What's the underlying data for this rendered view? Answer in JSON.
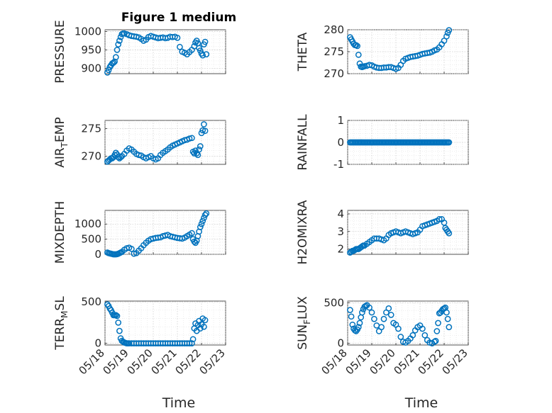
{
  "chart_data": [
    {
      "type": "scatter",
      "title": "Figure 1 medium",
      "ylabel": "PRESSURE",
      "xlabel": "",
      "xlim": [
        "05/18",
        "05/23"
      ],
      "ylim": [
        885,
        1005
      ],
      "yticks": [
        900,
        950,
        1000
      ],
      "x_tick_labels": [
        "05/18",
        "05/19",
        "05/20",
        "05/21",
        "05/22",
        "05/23"
      ],
      "x": [
        0.1,
        0.15,
        0.2,
        0.25,
        0.3,
        0.35,
        0.4,
        0.45,
        0.5,
        0.55,
        0.6,
        0.65,
        0.7,
        0.75,
        0.8,
        0.9,
        1.0,
        1.1,
        1.2,
        1.3,
        1.4,
        1.5,
        1.6,
        1.7,
        1.8,
        1.9,
        2.0,
        2.1,
        2.2,
        2.3,
        2.4,
        2.5,
        2.6,
        2.7,
        2.8,
        2.9,
        3.0,
        3.1,
        3.2,
        3.3,
        3.4,
        3.5,
        3.6,
        3.7,
        3.75,
        3.8,
        3.85,
        3.9,
        3.95,
        4.0,
        4.05,
        4.1,
        4.15,
        4.2
      ],
      "y": [
        888,
        895,
        903,
        908,
        913,
        915,
        918,
        930,
        950,
        965,
        975,
        985,
        993,
        995,
        995,
        993,
        990,
        988,
        987,
        986,
        984,
        980,
        975,
        978,
        985,
        988,
        986,
        984,
        982,
        983,
        984,
        982,
        983,
        986,
        985,
        986,
        983,
        958,
        945,
        942,
        938,
        944,
        950,
        960,
        970,
        975,
        968,
        955,
        948,
        940,
        935,
        965,
        972,
        938
      ],
      "series_name": ""
    },
    {
      "type": "scatter",
      "ylabel": "THETA",
      "xlim": [
        "05/18",
        "05/23"
      ],
      "ylim": [
        270,
        280
      ],
      "yticks": [
        270,
        275,
        280
      ],
      "x_tick_labels": [
        "05/18",
        "05/19",
        "05/20",
        "05/21",
        "05/22",
        "05/23"
      ],
      "x": [
        0.1,
        0.15,
        0.2,
        0.25,
        0.3,
        0.35,
        0.4,
        0.45,
        0.5,
        0.55,
        0.6,
        0.65,
        0.7,
        0.8,
        0.9,
        1.0,
        1.1,
        1.2,
        1.3,
        1.4,
        1.5,
        1.6,
        1.7,
        1.8,
        1.9,
        2.0,
        2.1,
        2.2,
        2.3,
        2.4,
        2.5,
        2.6,
        2.7,
        2.8,
        2.9,
        3.0,
        3.1,
        3.2,
        3.3,
        3.4,
        3.5,
        3.6,
        3.7,
        3.8,
        3.9,
        4.0,
        4.1,
        4.15,
        4.2
      ],
      "y": [
        278.3,
        277.8,
        277.3,
        276.8,
        276.5,
        276.5,
        276.3,
        274.3,
        272.3,
        271.6,
        271.5,
        271.6,
        271.7,
        271.8,
        272,
        271.9,
        271.6,
        271.4,
        271.3,
        271.3,
        271.4,
        271.4,
        271.5,
        271.5,
        271.3,
        271.1,
        271.3,
        272,
        272.9,
        273.4,
        273.6,
        273.8,
        273.9,
        274,
        274.1,
        274.3,
        274.5,
        274.6,
        274.7,
        274.8,
        275,
        275.3,
        275.5,
        276,
        276.7,
        277.5,
        278.5,
        279.3,
        279.9
      ],
      "series_name": ""
    },
    {
      "type": "scatter",
      "ylabel": "AIR_TEMP",
      "xlim": [
        "05/18",
        "05/23"
      ],
      "ylim": [
        268.5,
        276.5
      ],
      "yticks": [
        270,
        275
      ],
      "x_tick_labels": [
        "05/18",
        "05/19",
        "05/20",
        "05/21",
        "05/22",
        "05/23"
      ],
      "x": [
        0.1,
        0.15,
        0.2,
        0.25,
        0.3,
        0.35,
        0.4,
        0.45,
        0.5,
        0.55,
        0.6,
        0.65,
        0.7,
        0.8,
        0.9,
        1.0,
        1.1,
        1.2,
        1.3,
        1.4,
        1.5,
        1.6,
        1.7,
        1.8,
        1.9,
        2.0,
        2.1,
        2.2,
        2.3,
        2.4,
        2.5,
        2.6,
        2.7,
        2.8,
        2.9,
        3.0,
        3.1,
        3.2,
        3.3,
        3.4,
        3.5,
        3.6,
        3.65,
        3.7,
        3.75,
        3.8,
        3.85,
        3.9,
        3.95,
        4.0,
        4.05,
        4.1,
        4.15
      ],
      "y": [
        269,
        269.2,
        269.4,
        269.6,
        269.6,
        269.8,
        270.2,
        270.6,
        270.3,
        269.8,
        269.6,
        269.8,
        270,
        270.4,
        271,
        271.4,
        271.2,
        270.8,
        270.4,
        270.2,
        270.1,
        269.8,
        269.6,
        269.8,
        270,
        269.6,
        269.4,
        269.6,
        270.2,
        270.6,
        270.9,
        271.2,
        271.6,
        271.9,
        272.1,
        272.3,
        272.5,
        272.7,
        272.9,
        273,
        273.2,
        273.3,
        270.8,
        270.5,
        271,
        270.5,
        270.2,
        271.2,
        271.8,
        274.2,
        274.7,
        275.8,
        274.6
      ],
      "series_name": ""
    },
    {
      "type": "scatter",
      "ylabel": "RAINFALL",
      "xlim": [
        "05/18",
        "05/23"
      ],
      "ylim": [
        -1,
        1
      ],
      "yticks": [
        -1,
        0,
        1
      ],
      "x_tick_labels": [
        "05/18",
        "05/19",
        "05/20",
        "05/21",
        "05/22",
        "05/23"
      ],
      "x_range": [
        0.1,
        4.2
      ],
      "constant_value": 0,
      "series_name": ""
    },
    {
      "type": "scatter",
      "ylabel": "MIXDEPTH",
      "xlim": [
        "05/18",
        "05/23"
      ],
      "ylim": [
        0,
        1450
      ],
      "yticks": [
        0,
        500,
        1000
      ],
      "x_tick_labels": [
        "05/18",
        "05/19",
        "05/20",
        "05/21",
        "05/22",
        "05/23"
      ],
      "x": [
        0.1,
        0.15,
        0.2,
        0.25,
        0.3,
        0.35,
        0.4,
        0.45,
        0.5,
        0.55,
        0.6,
        0.65,
        0.7,
        0.8,
        0.9,
        1.0,
        1.1,
        1.2,
        1.3,
        1.4,
        1.5,
        1.6,
        1.7,
        1.8,
        1.9,
        2.0,
        2.1,
        2.2,
        2.3,
        2.4,
        2.5,
        2.6,
        2.7,
        2.8,
        2.9,
        3.0,
        3.1,
        3.2,
        3.3,
        3.4,
        3.5,
        3.6,
        3.65,
        3.7,
        3.75,
        3.8,
        3.85,
        3.9,
        3.95,
        4.0,
        4.05,
        4.1,
        4.15,
        4.2
      ],
      "y": [
        60,
        40,
        30,
        20,
        10,
        0,
        0,
        0,
        5,
        20,
        40,
        60,
        80,
        150,
        200,
        220,
        180,
        20,
        40,
        120,
        200,
        300,
        380,
        450,
        500,
        520,
        540,
        550,
        560,
        600,
        620,
        640,
        600,
        580,
        560,
        540,
        530,
        520,
        550,
        600,
        650,
        700,
        500,
        420,
        380,
        450,
        600,
        750,
        900,
        1000,
        1100,
        1200,
        1300,
        1350
      ],
      "series_name": ""
    },
    {
      "type": "scatter",
      "ylabel": "H2OMIXRA",
      "xlim": [
        "05/18",
        "05/23"
      ],
      "ylim": [
        1.7,
        4.2
      ],
      "yticks": [
        2,
        3,
        4
      ],
      "x_tick_labels": [
        "05/18",
        "05/19",
        "05/20",
        "05/21",
        "05/22",
        "05/23"
      ],
      "x": [
        0.1,
        0.15,
        0.2,
        0.25,
        0.3,
        0.35,
        0.4,
        0.45,
        0.5,
        0.55,
        0.6,
        0.65,
        0.7,
        0.8,
        0.9,
        1.0,
        1.1,
        1.2,
        1.3,
        1.4,
        1.5,
        1.6,
        1.7,
        1.8,
        1.9,
        2.0,
        2.1,
        2.2,
        2.3,
        2.4,
        2.5,
        2.6,
        2.7,
        2.8,
        2.9,
        3.0,
        3.1,
        3.2,
        3.3,
        3.4,
        3.5,
        3.6,
        3.7,
        3.8,
        3.9,
        4.0,
        4.05,
        4.1,
        4.15,
        4.2
      ],
      "y": [
        1.8,
        1.85,
        1.9,
        1.9,
        1.95,
        2.0,
        2.0,
        2.0,
        2.05,
        2.1,
        2.15,
        2.2,
        2.2,
        2.3,
        2.4,
        2.5,
        2.6,
        2.6,
        2.6,
        2.55,
        2.5,
        2.6,
        2.8,
        2.9,
        2.95,
        3.0,
        2.95,
        2.9,
        2.95,
        3.0,
        2.95,
        2.9,
        2.85,
        2.9,
        2.95,
        3.1,
        3.3,
        3.35,
        3.4,
        3.45,
        3.5,
        3.55,
        3.6,
        3.7,
        3.7,
        3.5,
        3.2,
        3.1,
        3.0,
        2.9
      ],
      "series_name": ""
    },
    {
      "type": "scatter",
      "ylabel": "TERR_MSL",
      "xlim": [
        "05/18",
        "05/23"
      ],
      "ylim": [
        -20,
        510
      ],
      "yticks": [
        0,
        500
      ],
      "x_tick_labels": [
        "05/18",
        "05/19",
        "05/20",
        "05/21",
        "05/22",
        "05/23"
      ],
      "x": [
        0.1,
        0.15,
        0.2,
        0.25,
        0.3,
        0.35,
        0.4,
        0.45,
        0.5,
        0.55,
        0.6,
        0.65,
        0.7,
        0.75,
        0.8,
        0.85,
        0.9,
        0.95,
        1.0,
        1.1,
        1.2,
        1.3,
        1.4,
        1.5,
        1.6,
        1.7,
        1.8,
        1.9,
        2.0,
        2.1,
        2.2,
        2.3,
        2.4,
        2.5,
        2.6,
        2.7,
        2.8,
        2.9,
        3.0,
        3.1,
        3.2,
        3.3,
        3.4,
        3.5,
        3.6,
        3.65,
        3.7,
        3.75,
        3.8,
        3.85,
        3.9,
        3.95,
        4.0,
        4.05,
        4.1,
        4.15
      ],
      "y": [
        470,
        450,
        420,
        400,
        370,
        340,
        340,
        340,
        330,
        250,
        150,
        60,
        30,
        20,
        10,
        5,
        0,
        0,
        0,
        0,
        0,
        0,
        0,
        0,
        0,
        0,
        0,
        0,
        0,
        0,
        0,
        0,
        0,
        0,
        0,
        0,
        0,
        0,
        0,
        0,
        0,
        0,
        0,
        0,
        0,
        50,
        180,
        240,
        150,
        220,
        270,
        180,
        230,
        300,
        200,
        280
      ],
      "series_name": ""
    },
    {
      "type": "scatter",
      "ylabel": "SUN_FLUX",
      "xlim": [
        "05/18",
        "05/23"
      ],
      "ylim": [
        -20,
        520
      ],
      "yticks": [
        0,
        500
      ],
      "x_tick_labels": [
        "05/18",
        "05/19",
        "05/20",
        "05/21",
        "05/22",
        "05/23"
      ],
      "x": [
        0.1,
        0.15,
        0.2,
        0.25,
        0.3,
        0.35,
        0.4,
        0.45,
        0.5,
        0.55,
        0.6,
        0.65,
        0.7,
        0.75,
        0.8,
        0.9,
        1.0,
        1.1,
        1.2,
        1.3,
        1.4,
        1.5,
        1.6,
        1.7,
        1.8,
        1.9,
        2.0,
        2.1,
        2.2,
        2.3,
        2.4,
        2.5,
        2.6,
        2.7,
        2.8,
        2.9,
        3.0,
        3.1,
        3.2,
        3.3,
        3.4,
        3.5,
        3.6,
        3.65,
        3.7,
        3.75,
        3.8,
        3.85,
        3.9,
        3.95,
        4.0,
        4.05,
        4.1,
        4.15,
        4.2
      ],
      "y": [
        410,
        330,
        230,
        180,
        160,
        150,
        170,
        200,
        250,
        320,
        380,
        420,
        450,
        460,
        470,
        440,
        380,
        300,
        220,
        150,
        200,
        300,
        380,
        430,
        350,
        250,
        230,
        180,
        80,
        20,
        10,
        30,
        60,
        100,
        160,
        200,
        220,
        180,
        100,
        40,
        10,
        0,
        20,
        30,
        150,
        250,
        370,
        380,
        400,
        420,
        430,
        440,
        380,
        300,
        200
      ],
      "series_name": ""
    }
  ],
  "axes_labels": {
    "time_left": "Time",
    "time_right": "Time"
  }
}
